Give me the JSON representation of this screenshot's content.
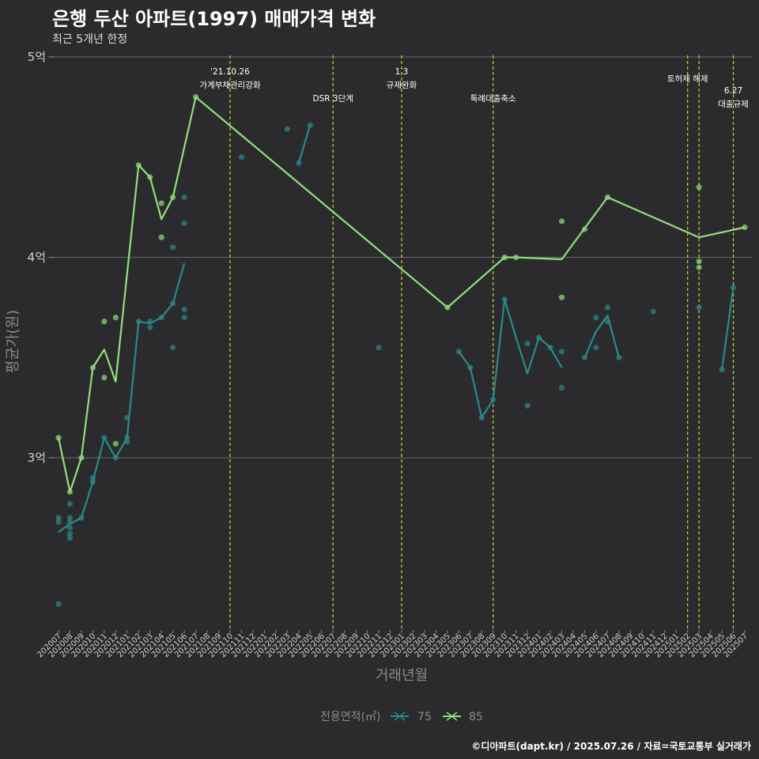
{
  "title": "은행 두산 아파트(1997) 매매가격 변화",
  "subtitle": "최근 5개년 한정",
  "caption": "©디아파트(dapt.kr) / 2025.07.26 / 자료=국토교통부 실거래가",
  "colors": {
    "background": "#2b2b2d",
    "grid": "#5e5e60",
    "vline": "#c8d62a",
    "s75": "#2a8a8a",
    "s85": "#90e07a"
  },
  "chart_data": {
    "type": "line",
    "title": "은행 두산 아파트(1997) 매매가격 변화",
    "subtitle": "최근 5개년 한정",
    "xlabel": "거래년월",
    "ylabel": "평균가(원)",
    "x_categories": [
      "202007",
      "202008",
      "202009",
      "202010",
      "202011",
      "202012",
      "202101",
      "202102",
      "202103",
      "202104",
      "202105",
      "202106",
      "202107",
      "202108",
      "202109",
      "202110",
      "202111",
      "202112",
      "202201",
      "202202",
      "202203",
      "202204",
      "202205",
      "202206",
      "202207",
      "202208",
      "202209",
      "202210",
      "202211",
      "202212",
      "202301",
      "202302",
      "202303",
      "202304",
      "202305",
      "202306",
      "202307",
      "202308",
      "202309",
      "202310",
      "202311",
      "202312",
      "202401",
      "202402",
      "202403",
      "202404",
      "202405",
      "202406",
      "202407",
      "202408",
      "202409",
      "202410",
      "202411",
      "202412",
      "202501",
      "202502",
      "202503",
      "202504",
      "202505",
      "202506",
      "202507"
    ],
    "y_ticks": [
      {
        "value": 3.0,
        "label": "3억"
      },
      {
        "value": 4.0,
        "label": "4억"
      },
      {
        "value": 5.0,
        "label": "5억"
      }
    ],
    "ylim": [
      2.15,
      5.07
    ],
    "grid": true,
    "legend": {
      "title": "전용면적(㎡)",
      "position": "bottom",
      "items": [
        "75",
        "85"
      ]
    },
    "annotations": [
      {
        "x": "202110",
        "lines": [
          "'21.10.26",
          "가계부채관리강화"
        ],
        "level": 1
      },
      {
        "x": "202207",
        "lines": [
          "DSR 3단계"
        ],
        "level": 3
      },
      {
        "x": "202301",
        "lines": [
          "1.3",
          "규제완화"
        ],
        "level": 1
      },
      {
        "x": "202309",
        "lines": [
          "특례대출축소"
        ],
        "level": 3
      },
      {
        "x": "202502",
        "lines": [
          "토허제 해제"
        ],
        "level": 2
      },
      {
        "x": "202503",
        "lines": [],
        "level": 0
      },
      {
        "x": "202506",
        "lines": [
          "6.27",
          "대출규제"
        ],
        "level": 3
      }
    ],
    "series": [
      {
        "name": "75",
        "color": "#2a8a8a",
        "line_segments": [
          [
            [
              "202007",
              2.63
            ],
            [
              "202008",
              2.67
            ],
            [
              "202009",
              2.7
            ],
            [
              "202010",
              2.88
            ],
            [
              "202011",
              3.1
            ],
            [
              "202012",
              3.0
            ],
            [
              "202101",
              3.1
            ],
            [
              "202102",
              3.68
            ],
            [
              "202103",
              3.67
            ],
            [
              "202104",
              3.7
            ],
            [
              "202105",
              3.77
            ],
            [
              "202106",
              3.97
            ]
          ],
          [
            [
              "202204",
              4.47
            ],
            [
              "202205",
              4.66
            ]
          ],
          [
            [
              "202306",
              3.53
            ],
            [
              "202307",
              3.45
            ],
            [
              "202308",
              3.2
            ],
            [
              "202309",
              3.29
            ],
            [
              "202310",
              3.79
            ],
            [
              "202311",
              3.6
            ],
            [
              "202312",
              3.42
            ],
            [
              "202401",
              3.6
            ],
            [
              "202402",
              3.55
            ],
            [
              "202403",
              3.45
            ]
          ],
          [
            [
              "202405",
              3.5
            ],
            [
              "202406",
              3.63
            ],
            [
              "202407",
              3.71
            ],
            [
              "202408",
              3.5
            ]
          ],
          [
            [
              "202505",
              3.44
            ],
            [
              "202506",
              3.85
            ]
          ]
        ],
        "points": [
          [
            "202007",
            2.27
          ],
          [
            "202007",
            2.68
          ],
          [
            "202007",
            2.7
          ],
          [
            "202008",
            2.6
          ],
          [
            "202008",
            2.62
          ],
          [
            "202008",
            2.65
          ],
          [
            "202008",
            2.68
          ],
          [
            "202008",
            2.7
          ],
          [
            "202008",
            2.77
          ],
          [
            "202009",
            2.7
          ],
          [
            "202010",
            2.88
          ],
          [
            "202010",
            2.9
          ],
          [
            "202011",
            3.1
          ],
          [
            "202012",
            3.0
          ],
          [
            "202101",
            3.08
          ],
          [
            "202101",
            3.1
          ],
          [
            "202101",
            3.2
          ],
          [
            "202102",
            3.68
          ],
          [
            "202103",
            3.65
          ],
          [
            "202103",
            3.68
          ],
          [
            "202104",
            3.7
          ],
          [
            "202105",
            3.55
          ],
          [
            "202105",
            3.77
          ],
          [
            "202105",
            4.05
          ],
          [
            "202106",
            3.7
          ],
          [
            "202106",
            3.74
          ],
          [
            "202106",
            4.17
          ],
          [
            "202106",
            4.3
          ],
          [
            "202111",
            4.5
          ],
          [
            "202203",
            4.64
          ],
          [
            "202204",
            4.47
          ],
          [
            "202205",
            4.66
          ],
          [
            "202211",
            3.55
          ],
          [
            "202306",
            3.53
          ],
          [
            "202307",
            3.45
          ],
          [
            "202308",
            3.2
          ],
          [
            "202309",
            3.29
          ],
          [
            "202310",
            3.79
          ],
          [
            "202312",
            3.26
          ],
          [
            "202312",
            3.57
          ],
          [
            "202401",
            3.6
          ],
          [
            "202402",
            3.55
          ],
          [
            "202403",
            3.35
          ],
          [
            "202403",
            3.53
          ],
          [
            "202405",
            3.5
          ],
          [
            "202406",
            3.55
          ],
          [
            "202406",
            3.7
          ],
          [
            "202407",
            3.68
          ],
          [
            "202407",
            3.75
          ],
          [
            "202408",
            3.5
          ],
          [
            "202411",
            3.73
          ],
          [
            "202503",
            3.75
          ],
          [
            "202505",
            3.44
          ],
          [
            "202506",
            3.85
          ]
        ]
      },
      {
        "name": "85",
        "color": "#90e07a",
        "line_segments": [
          [
            [
              "202007",
              3.1
            ],
            [
              "202008",
              2.83
            ],
            [
              "202009",
              3.0
            ],
            [
              "202010",
              3.45
            ],
            [
              "202011",
              3.54
            ],
            [
              "202012",
              3.38
            ],
            [
              "202102",
              4.46
            ],
            [
              "202103",
              4.4
            ],
            [
              "202104",
              4.19
            ],
            [
              "202105",
              4.3
            ],
            [
              "202107",
              4.8
            ],
            [
              "202305",
              3.75
            ],
            [
              "202310",
              4.0
            ],
            [
              "202311",
              4.0
            ],
            [
              "202403",
              3.99
            ],
            [
              "202407",
              4.3
            ],
            [
              "202503",
              4.1
            ],
            [
              "202507",
              4.15
            ]
          ]
        ],
        "points": [
          [
            "202007",
            3.1
          ],
          [
            "202008",
            2.83
          ],
          [
            "202009",
            3.0
          ],
          [
            "202010",
            3.45
          ],
          [
            "202011",
            3.4
          ],
          [
            "202011",
            3.68
          ],
          [
            "202012",
            3.07
          ],
          [
            "202012",
            3.7
          ],
          [
            "202102",
            4.46
          ],
          [
            "202103",
            4.4
          ],
          [
            "202104",
            4.1
          ],
          [
            "202104",
            4.27
          ],
          [
            "202105",
            4.3
          ],
          [
            "202107",
            4.8
          ],
          [
            "202305",
            3.75
          ],
          [
            "202310",
            4.0
          ],
          [
            "202311",
            4.0
          ],
          [
            "202403",
            3.8
          ],
          [
            "202403",
            4.18
          ],
          [
            "202405",
            4.14
          ],
          [
            "202407",
            4.3
          ],
          [
            "202503",
            3.95
          ],
          [
            "202503",
            3.98
          ],
          [
            "202503",
            4.35
          ],
          [
            "202507",
            4.15
          ]
        ]
      }
    ]
  }
}
